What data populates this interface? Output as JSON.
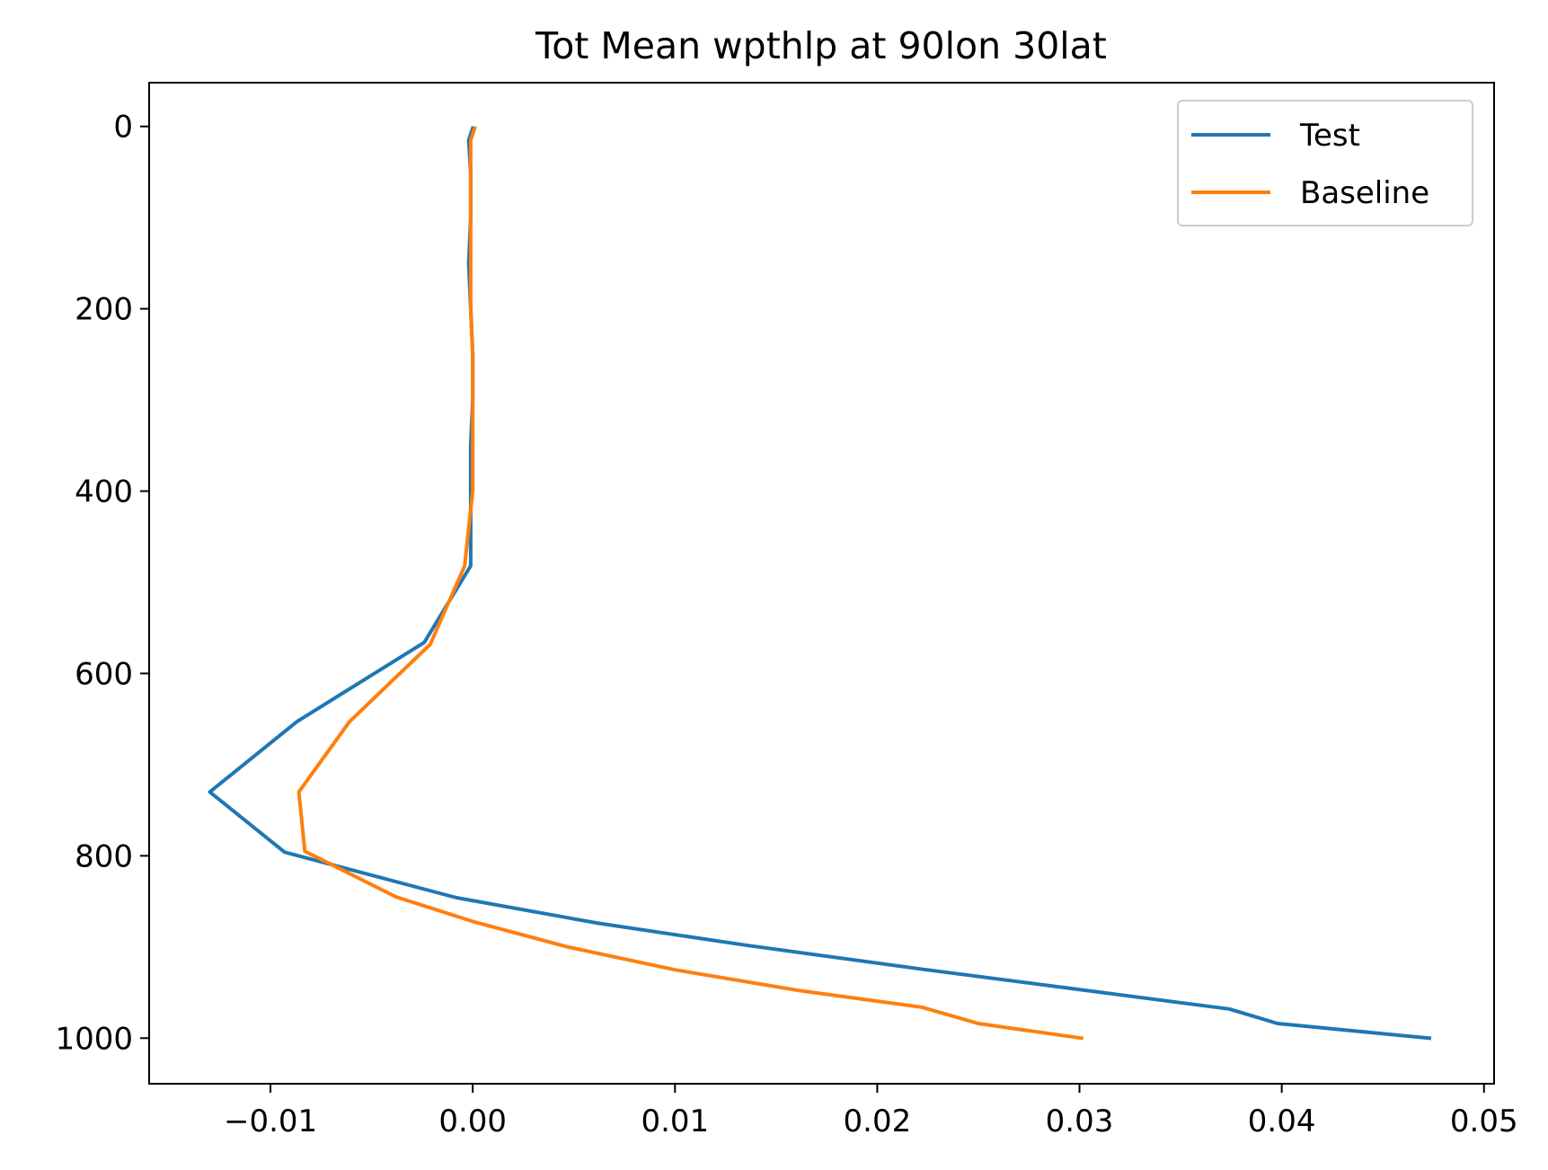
{
  "chart_data": {
    "type": "line",
    "title": "Tot Mean wpthlp at 90lon 30lat",
    "xlabel": "",
    "ylabel": "",
    "xlim": [
      -0.016,
      0.0505
    ],
    "ylim": [
      1050,
      -48
    ],
    "y_inverted": true,
    "grid": false,
    "legend_position": "top-right",
    "x_ticks": [
      {
        "value": -0.01,
        "label": "−0.01"
      },
      {
        "value": 0.0,
        "label": "0.00"
      },
      {
        "value": 0.01,
        "label": "0.01"
      },
      {
        "value": 0.02,
        "label": "0.02"
      },
      {
        "value": 0.03,
        "label": "0.03"
      },
      {
        "value": 0.04,
        "label": "0.04"
      },
      {
        "value": 0.05,
        "label": "0.05"
      }
    ],
    "y_ticks": [
      {
        "value": 0,
        "label": "0"
      },
      {
        "value": 200,
        "label": "200"
      },
      {
        "value": 400,
        "label": "400"
      },
      {
        "value": 600,
        "label": "600"
      },
      {
        "value": 800,
        "label": "800"
      },
      {
        "value": 1000,
        "label": "1000"
      }
    ],
    "series": [
      {
        "name": "Test",
        "color": "#1f77b4",
        "points": [
          [
            0.0,
            2
          ],
          [
            -0.0002,
            15
          ],
          [
            -0.0001,
            50
          ],
          [
            -0.0001,
            100
          ],
          [
            -0.0002,
            150
          ],
          [
            -0.0001,
            200
          ],
          [
            0.0,
            250
          ],
          [
            0.0,
            300
          ],
          [
            -0.0001,
            350
          ],
          [
            -0.0001,
            400
          ],
          [
            -0.0001,
            440
          ],
          [
            -0.0001,
            482
          ],
          [
            -0.0024,
            566
          ],
          [
            -0.0087,
            653
          ],
          [
            -0.013,
            730
          ],
          [
            -0.0093,
            796
          ],
          [
            -0.0008,
            846
          ],
          [
            0.0062,
            874
          ],
          [
            0.0135,
            898
          ],
          [
            0.0221,
            924
          ],
          [
            0.0301,
            947
          ],
          [
            0.0374,
            968
          ],
          [
            0.0398,
            984
          ],
          [
            0.0473,
            1000
          ]
        ]
      },
      {
        "name": "Baseline",
        "color": "#ff7f0e",
        "points": [
          [
            0.0001,
            2
          ],
          [
            -0.0001,
            15
          ],
          [
            -0.0001,
            50
          ],
          [
            -0.0001,
            100
          ],
          [
            -0.0001,
            150
          ],
          [
            -0.0001,
            200
          ],
          [
            0.0,
            250
          ],
          [
            0.0,
            300
          ],
          [
            0.0,
            350
          ],
          [
            0.0,
            400
          ],
          [
            -0.0002,
            440
          ],
          [
            -0.0004,
            482
          ],
          [
            -0.0021,
            568
          ],
          [
            -0.0061,
            653
          ],
          [
            -0.0086,
            730
          ],
          [
            -0.0083,
            795
          ],
          [
            -0.0038,
            845
          ],
          [
            0.0,
            872
          ],
          [
            0.0047,
            900
          ],
          [
            0.01,
            925
          ],
          [
            0.0162,
            948
          ],
          [
            0.0222,
            966
          ],
          [
            0.025,
            984
          ],
          [
            0.0301,
            1000
          ]
        ]
      }
    ]
  }
}
